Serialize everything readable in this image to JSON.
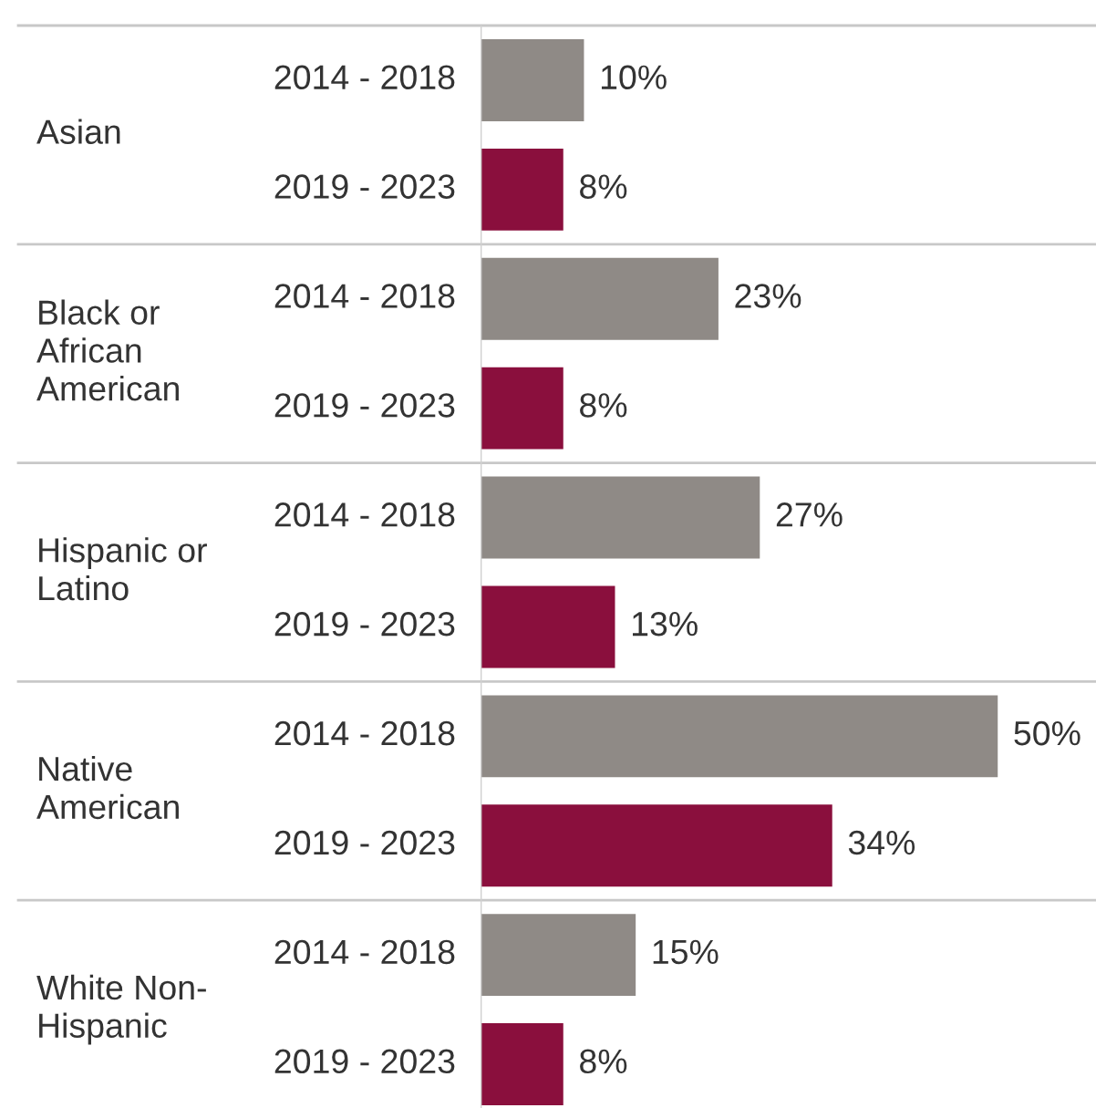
{
  "chart_data": {
    "type": "bar",
    "orientation": "horizontal",
    "categories": [
      "Asian",
      "Black or\nAfrican\nAmerican",
      "Hispanic or\nLatino",
      "Native\nAmerican",
      "White Non-\nHispanic"
    ],
    "series": [
      {
        "name": "2014 - 2018",
        "color": "#8f8a86",
        "values": [
          10,
          23,
          27,
          50,
          15
        ],
        "value_labels": [
          "10%",
          "23%",
          "27%",
          "50%",
          "15%"
        ]
      },
      {
        "name": "2019 - 2023",
        "color": "#8a0f3d",
        "values": [
          8,
          8,
          13,
          34,
          8
        ],
        "value_labels": [
          "8%",
          "8%",
          "13%",
          "34%",
          "8%"
        ]
      }
    ]
  }
}
